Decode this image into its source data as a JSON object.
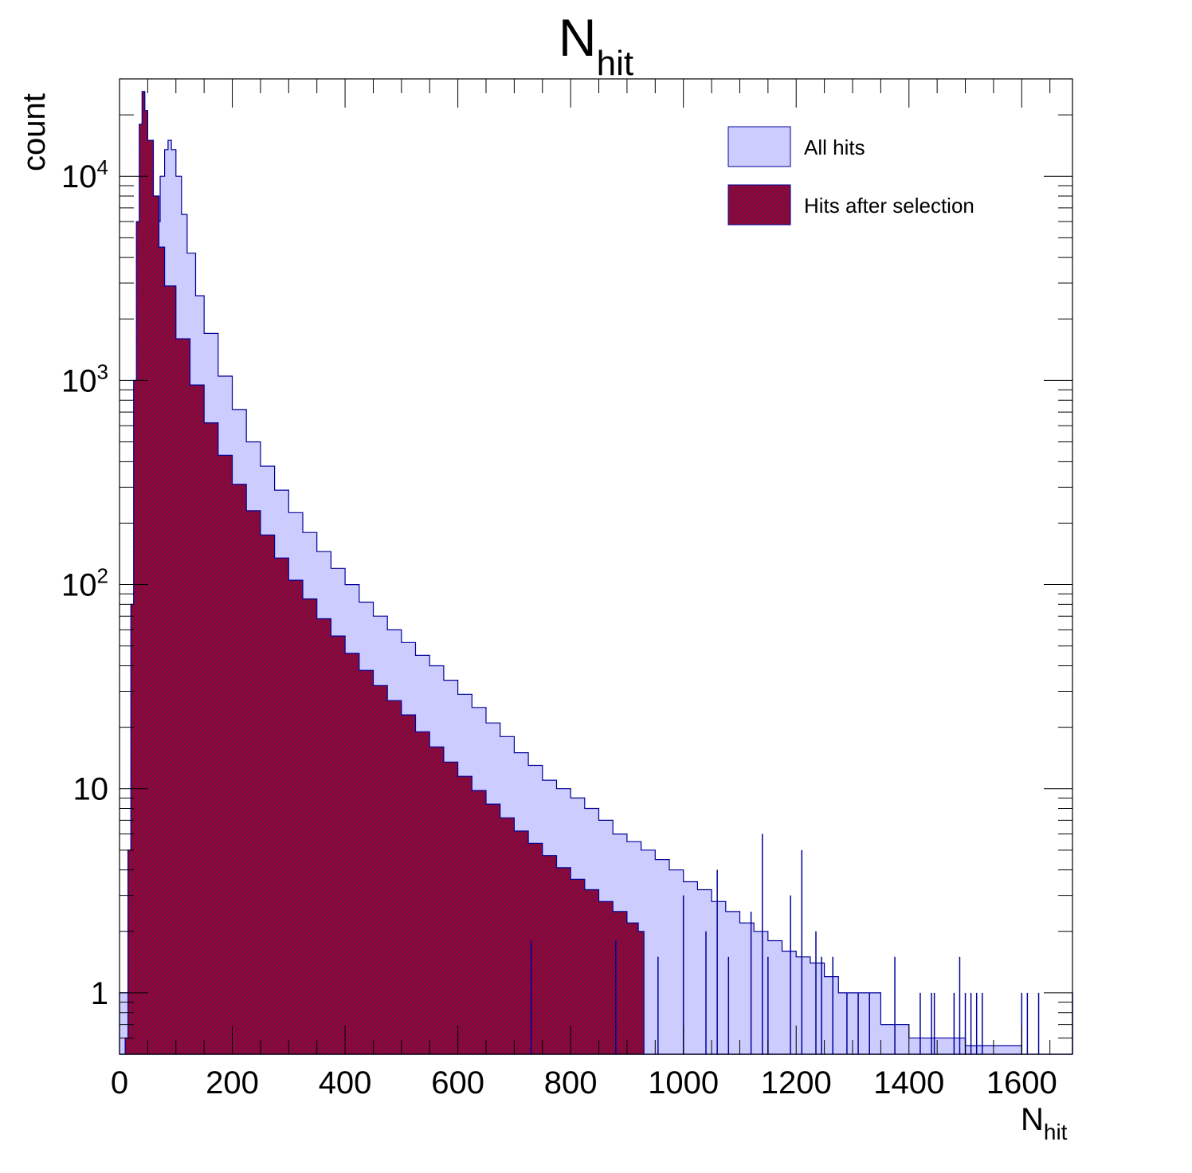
{
  "chart_data": {
    "type": "area",
    "title": {
      "main": "N",
      "sub": "hit"
    },
    "xlabel": {
      "main": "N",
      "sub": "hit"
    },
    "ylabel": "count",
    "xlim": [
      0,
      1690
    ],
    "ylim": [
      0.5,
      30000
    ],
    "yscale": "log",
    "grid": false,
    "legend_position": "top-right",
    "xticks": [
      "0",
      "200",
      "400",
      "600",
      "800",
      "1000",
      "1200",
      "1400",
      "1600"
    ],
    "yticks": [
      {
        "value": 1,
        "base": "1",
        "exp": ""
      },
      {
        "value": 10,
        "base": "10",
        "exp": ""
      },
      {
        "value": 100,
        "base": "10",
        "exp": "2"
      },
      {
        "value": 1000,
        "base": "10",
        "exp": "3"
      },
      {
        "value": 10000,
        "base": "10",
        "exp": "4"
      }
    ],
    "series": [
      {
        "name": "All hits",
        "fill": "#ccccff",
        "line": "#000099",
        "hatch": false,
        "points": [
          [
            0,
            1
          ],
          [
            15,
            3
          ],
          [
            25,
            30
          ],
          [
            35,
            150
          ],
          [
            45,
            700
          ],
          [
            55,
            2500
          ],
          [
            65,
            6000
          ],
          [
            72,
            10000
          ],
          [
            80,
            13500
          ],
          [
            86,
            15000
          ],
          [
            92,
            13500
          ],
          [
            100,
            10000
          ],
          [
            110,
            6500
          ],
          [
            120,
            4200
          ],
          [
            135,
            2600
          ],
          [
            150,
            1700
          ],
          [
            175,
            1050
          ],
          [
            200,
            720
          ],
          [
            225,
            500
          ],
          [
            250,
            380
          ],
          [
            275,
            290
          ],
          [
            300,
            225
          ],
          [
            325,
            180
          ],
          [
            350,
            145
          ],
          [
            375,
            120
          ],
          [
            400,
            100
          ],
          [
            425,
            82
          ],
          [
            450,
            70
          ],
          [
            475,
            60
          ],
          [
            500,
            52
          ],
          [
            525,
            45
          ],
          [
            550,
            40
          ],
          [
            575,
            34
          ],
          [
            600,
            29
          ],
          [
            625,
            25
          ],
          [
            650,
            21
          ],
          [
            675,
            18
          ],
          [
            700,
            15
          ],
          [
            725,
            13
          ],
          [
            750,
            11
          ],
          [
            775,
            10
          ],
          [
            800,
            9
          ],
          [
            825,
            8
          ],
          [
            850,
            7
          ],
          [
            875,
            6
          ],
          [
            900,
            5.5
          ],
          [
            925,
            5
          ],
          [
            950,
            4.5
          ],
          [
            975,
            4
          ],
          [
            1000,
            3.5
          ],
          [
            1025,
            3.2
          ],
          [
            1050,
            2.8
          ],
          [
            1075,
            2.5
          ],
          [
            1100,
            2.2
          ],
          [
            1125,
            2
          ],
          [
            1150,
            1.8
          ],
          [
            1175,
            1.6
          ],
          [
            1200,
            1.5
          ],
          [
            1225,
            1.4
          ],
          [
            1250,
            1.2
          ],
          [
            1275,
            1
          ],
          [
            1300,
            1
          ],
          [
            1350,
            0.7
          ],
          [
            1400,
            0.6
          ],
          [
            1500,
            0.55
          ],
          [
            1600,
            0.5
          ],
          [
            1690,
            0.5
          ]
        ]
      },
      {
        "name": "Hits after selection",
        "fill": "#99003f",
        "line": "#000099",
        "hatch": true,
        "points": [
          [
            0,
            0.5
          ],
          [
            10,
            0.6
          ],
          [
            15,
            5
          ],
          [
            20,
            80
          ],
          [
            25,
            1000
          ],
          [
            30,
            6000
          ],
          [
            35,
            18000
          ],
          [
            40,
            26000
          ],
          [
            45,
            21000
          ],
          [
            50,
            15000
          ],
          [
            60,
            8000
          ],
          [
            70,
            4500
          ],
          [
            80,
            2900
          ],
          [
            100,
            1600
          ],
          [
            125,
            950
          ],
          [
            150,
            620
          ],
          [
            175,
            430
          ],
          [
            200,
            310
          ],
          [
            225,
            230
          ],
          [
            250,
            175
          ],
          [
            275,
            135
          ],
          [
            300,
            105
          ],
          [
            325,
            85
          ],
          [
            350,
            68
          ],
          [
            375,
            56
          ],
          [
            400,
            46
          ],
          [
            425,
            38
          ],
          [
            450,
            32
          ],
          [
            475,
            27
          ],
          [
            500,
            23
          ],
          [
            525,
            19
          ],
          [
            550,
            16
          ],
          [
            575,
            13.5
          ],
          [
            600,
            11.5
          ],
          [
            625,
            9.8
          ],
          [
            650,
            8.4
          ],
          [
            675,
            7.2
          ],
          [
            700,
            6.2
          ],
          [
            725,
            5.4
          ],
          [
            750,
            4.7
          ],
          [
            775,
            4.1
          ],
          [
            800,
            3.6
          ],
          [
            825,
            3.2
          ],
          [
            850,
            2.8
          ],
          [
            875,
            2.5
          ],
          [
            900,
            2.2
          ],
          [
            920,
            2
          ],
          [
            930,
            0.5
          ],
          [
            1690,
            0.5
          ]
        ]
      }
    ],
    "spikes_all": [
      [
        952,
        0.5
      ],
      [
        955,
        1.5
      ],
      [
        1000,
        3
      ],
      [
        1040,
        2
      ],
      [
        1060,
        4
      ],
      [
        1080,
        1.5
      ],
      [
        1120,
        2.5
      ],
      [
        1140,
        6
      ],
      [
        1150,
        1.5
      ],
      [
        1165,
        0.5
      ],
      [
        1190,
        3
      ],
      [
        1210,
        5
      ],
      [
        1235,
        2
      ],
      [
        1245,
        1.5
      ],
      [
        1265,
        1.5
      ],
      [
        1290,
        1
      ],
      [
        1310,
        1
      ],
      [
        1330,
        1
      ],
      [
        1375,
        1.5
      ],
      [
        1420,
        1
      ],
      [
        1440,
        1
      ],
      [
        1445,
        1
      ],
      [
        1480,
        1
      ],
      [
        1490,
        1.5
      ],
      [
        1500,
        1
      ],
      [
        1510,
        1
      ],
      [
        1520,
        1
      ],
      [
        1530,
        1
      ],
      [
        1600,
        1
      ],
      [
        1610,
        1
      ],
      [
        1630,
        1
      ],
      [
        1690,
        1
      ]
    ],
    "spikes_sel": [
      [
        730,
        1.8
      ],
      [
        880,
        1.8
      ],
      [
        900,
        0.5
      ],
      [
        950,
        0.5
      ]
    ]
  }
}
